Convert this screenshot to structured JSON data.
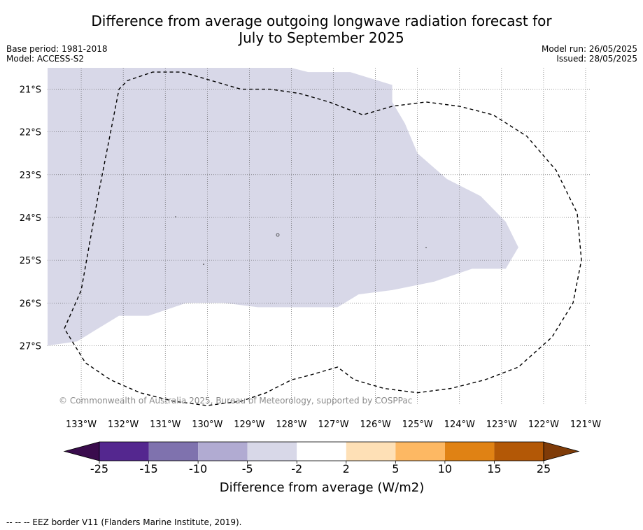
{
  "title": {
    "line1": "Difference from average outgoing longwave radiation forecast for",
    "line2": "July to September 2025"
  },
  "meta_left": {
    "base_period": "Base period: 1981-2018",
    "model": "Model: ACCESS-S2"
  },
  "meta_right": {
    "model_run": "Model run: 26/05/2025",
    "issued": "Issued: 28/05/2025"
  },
  "map": {
    "lon_range": [
      -133.8,
      -120.9
    ],
    "lat_range": [
      -28.4,
      -20.5
    ],
    "lon_ticks": [
      {
        "lon": -133,
        "label": "133°W"
      },
      {
        "lon": -132,
        "label": "132°W"
      },
      {
        "lon": -131,
        "label": "131°W"
      },
      {
        "lon": -130,
        "label": "130°W"
      },
      {
        "lon": -129,
        "label": "129°W"
      },
      {
        "lon": -128,
        "label": "128°W"
      },
      {
        "lon": -127,
        "label": "127°W"
      },
      {
        "lon": -126,
        "label": "126°W"
      },
      {
        "lon": -125,
        "label": "125°W"
      },
      {
        "lon": -124,
        "label": "124°W"
      },
      {
        "lon": -123,
        "label": "123°W"
      },
      {
        "lon": -122,
        "label": "122°W"
      },
      {
        "lon": -121,
        "label": "121°W"
      }
    ],
    "lat_ticks": [
      {
        "lat": -21,
        "label": "21°S"
      },
      {
        "lat": -22,
        "label": "22°S"
      },
      {
        "lat": -23,
        "label": "23°S"
      },
      {
        "lat": -24,
        "label": "24°S"
      },
      {
        "lat": -25,
        "label": "25°S"
      },
      {
        "lat": -26,
        "label": "26°S"
      },
      {
        "lat": -27,
        "label": "27°S"
      }
    ],
    "anomaly_region": {
      "category": "-5 to -2",
      "color": "#d8d8e8",
      "polygon": [
        [
          -133.8,
          -20.5
        ],
        [
          -128.0,
          -20.5
        ],
        [
          -127.6,
          -20.6
        ],
        [
          -126.6,
          -20.6
        ],
        [
          -125.6,
          -20.9
        ],
        [
          -125.6,
          -21.3
        ],
        [
          -125.3,
          -21.8
        ],
        [
          -125.0,
          -22.5
        ],
        [
          -124.3,
          -23.1
        ],
        [
          -123.5,
          -23.5
        ],
        [
          -122.9,
          -24.1
        ],
        [
          -122.6,
          -24.7
        ],
        [
          -122.9,
          -25.2
        ],
        [
          -123.7,
          -25.2
        ],
        [
          -124.6,
          -25.5
        ],
        [
          -125.6,
          -25.7
        ],
        [
          -126.4,
          -25.8
        ],
        [
          -126.9,
          -26.1
        ],
        [
          -127.6,
          -26.1
        ],
        [
          -128.8,
          -26.1
        ],
        [
          -129.6,
          -26.0
        ],
        [
          -130.5,
          -26.0
        ],
        [
          -131.4,
          -26.3
        ],
        [
          -132.1,
          -26.3
        ],
        [
          -132.6,
          -26.6
        ],
        [
          -133.1,
          -26.9
        ],
        [
          -133.8,
          -27.0
        ]
      ]
    },
    "eez_border": [
      [
        -133.4,
        -26.6
      ],
      [
        -133.0,
        -25.7
      ],
      [
        -132.6,
        -23.5
      ],
      [
        -132.1,
        -21.0
      ],
      [
        -131.9,
        -20.8
      ],
      [
        -131.3,
        -20.6
      ],
      [
        -130.6,
        -20.6
      ],
      [
        -129.9,
        -20.8
      ],
      [
        -129.2,
        -21.0
      ],
      [
        -128.5,
        -21.0
      ],
      [
        -127.8,
        -21.1
      ],
      [
        -127.1,
        -21.3
      ],
      [
        -126.3,
        -21.6
      ],
      [
        -125.6,
        -21.4
      ],
      [
        -124.8,
        -21.3
      ],
      [
        -124.0,
        -21.4
      ],
      [
        -123.2,
        -21.6
      ],
      [
        -122.4,
        -22.1
      ],
      [
        -121.7,
        -22.9
      ],
      [
        -121.2,
        -23.9
      ],
      [
        -121.1,
        -25.0
      ],
      [
        -121.3,
        -26.0
      ],
      [
        -121.8,
        -26.8
      ],
      [
        -122.6,
        -27.5
      ],
      [
        -123.4,
        -27.8
      ],
      [
        -124.2,
        -28.0
      ],
      [
        -125.0,
        -28.1
      ],
      [
        -125.8,
        -28.0
      ],
      [
        -126.5,
        -27.8
      ],
      [
        -126.9,
        -27.5
      ],
      [
        -127.6,
        -27.7
      ],
      [
        -128.0,
        -27.8
      ],
      [
        -128.6,
        -28.1
      ],
      [
        -129.2,
        -28.3
      ],
      [
        -130.0,
        -28.4
      ],
      [
        -130.8,
        -28.3
      ],
      [
        -131.6,
        -28.1
      ],
      [
        -132.3,
        -27.8
      ],
      [
        -132.9,
        -27.4
      ],
      [
        -133.4,
        -26.6
      ]
    ],
    "copyright": "© Commonwealth of Australia 2025, Bureau of Meteorology, supported by COSPPac"
  },
  "colorbar": {
    "label": "Difference from average (W/m2)",
    "colors": [
      "#3a0c4d",
      "#54278f",
      "#7f72ae",
      "#b1abd2",
      "#d8d8e8",
      "#ffffff",
      "#fee0b6",
      "#fdb863",
      "#e08214",
      "#b35806",
      "#7f3b08"
    ],
    "ticks": [
      "-25",
      "-15",
      "-10",
      "-5",
      "-2",
      "2",
      "5",
      "10",
      "15",
      "25"
    ]
  },
  "footer": "--  --  -- EEZ border V11 (Flanders Marine Institute, 2019)."
}
